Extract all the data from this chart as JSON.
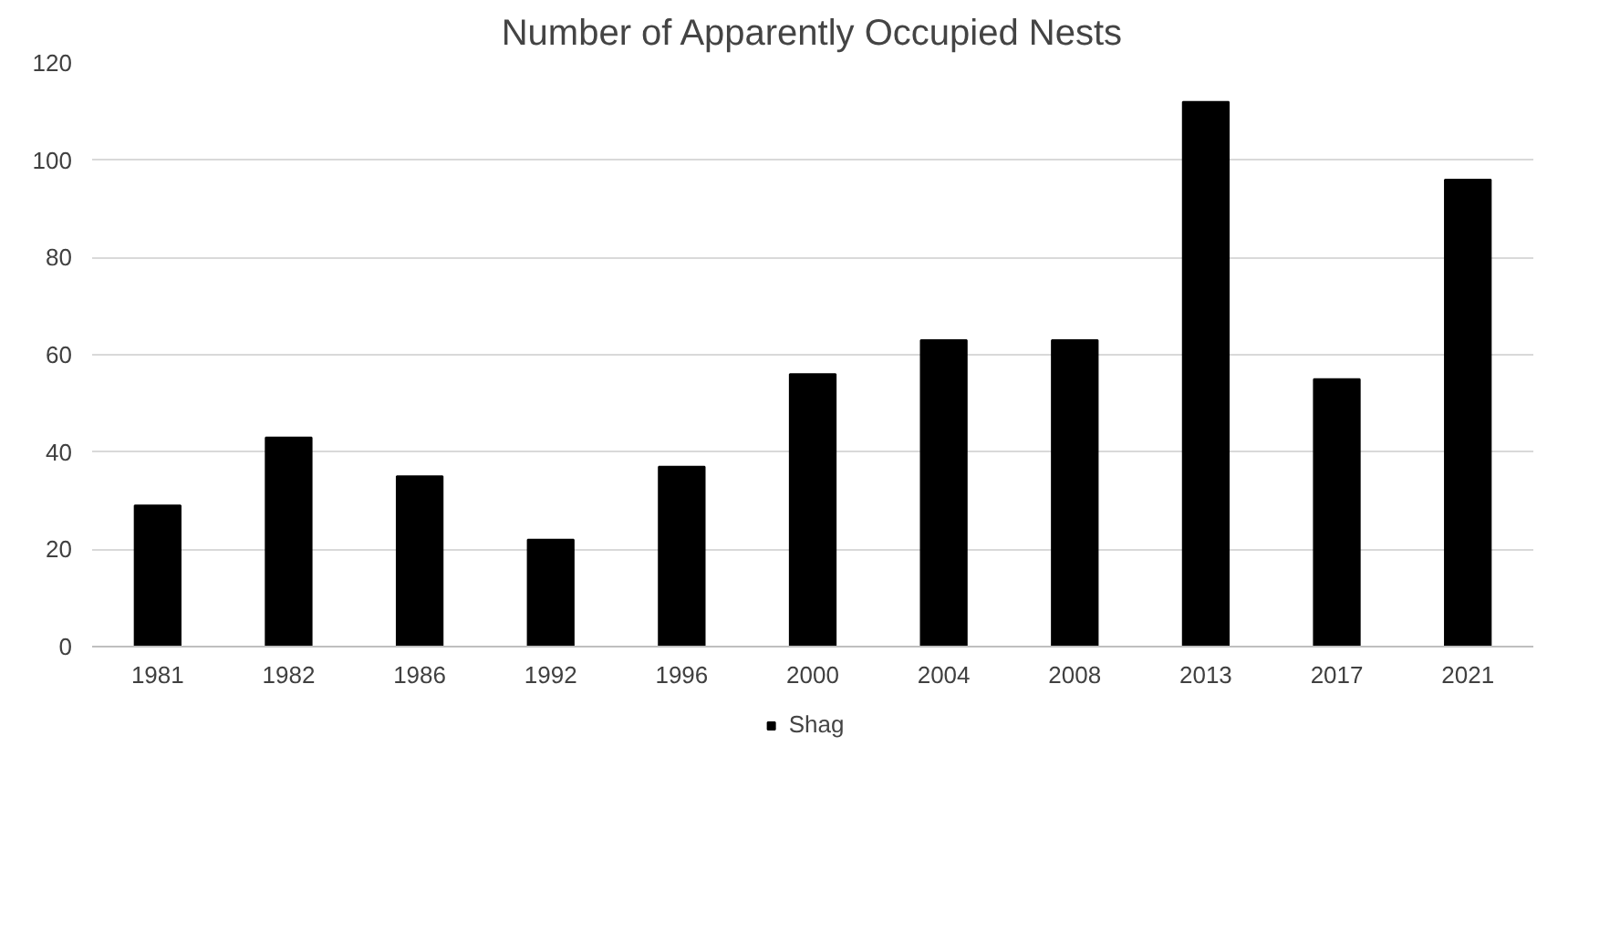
{
  "chart_data": {
    "type": "bar",
    "title": "Number of Apparently Occupied Nests",
    "categories": [
      "1981",
      "1982",
      "1986",
      "1992",
      "1996",
      "2000",
      "2004",
      "2008",
      "2013",
      "2017",
      "2021"
    ],
    "series": [
      {
        "name": "Shag",
        "color": "#000000",
        "values": [
          29,
          43,
          35,
          22,
          37,
          56,
          63,
          63,
          112,
          55,
          96
        ]
      }
    ],
    "ylim": [
      0,
      120
    ],
    "yticks": [
      0,
      20,
      40,
      60,
      80,
      100,
      120
    ],
    "grid": "y",
    "legend": "bottom"
  }
}
